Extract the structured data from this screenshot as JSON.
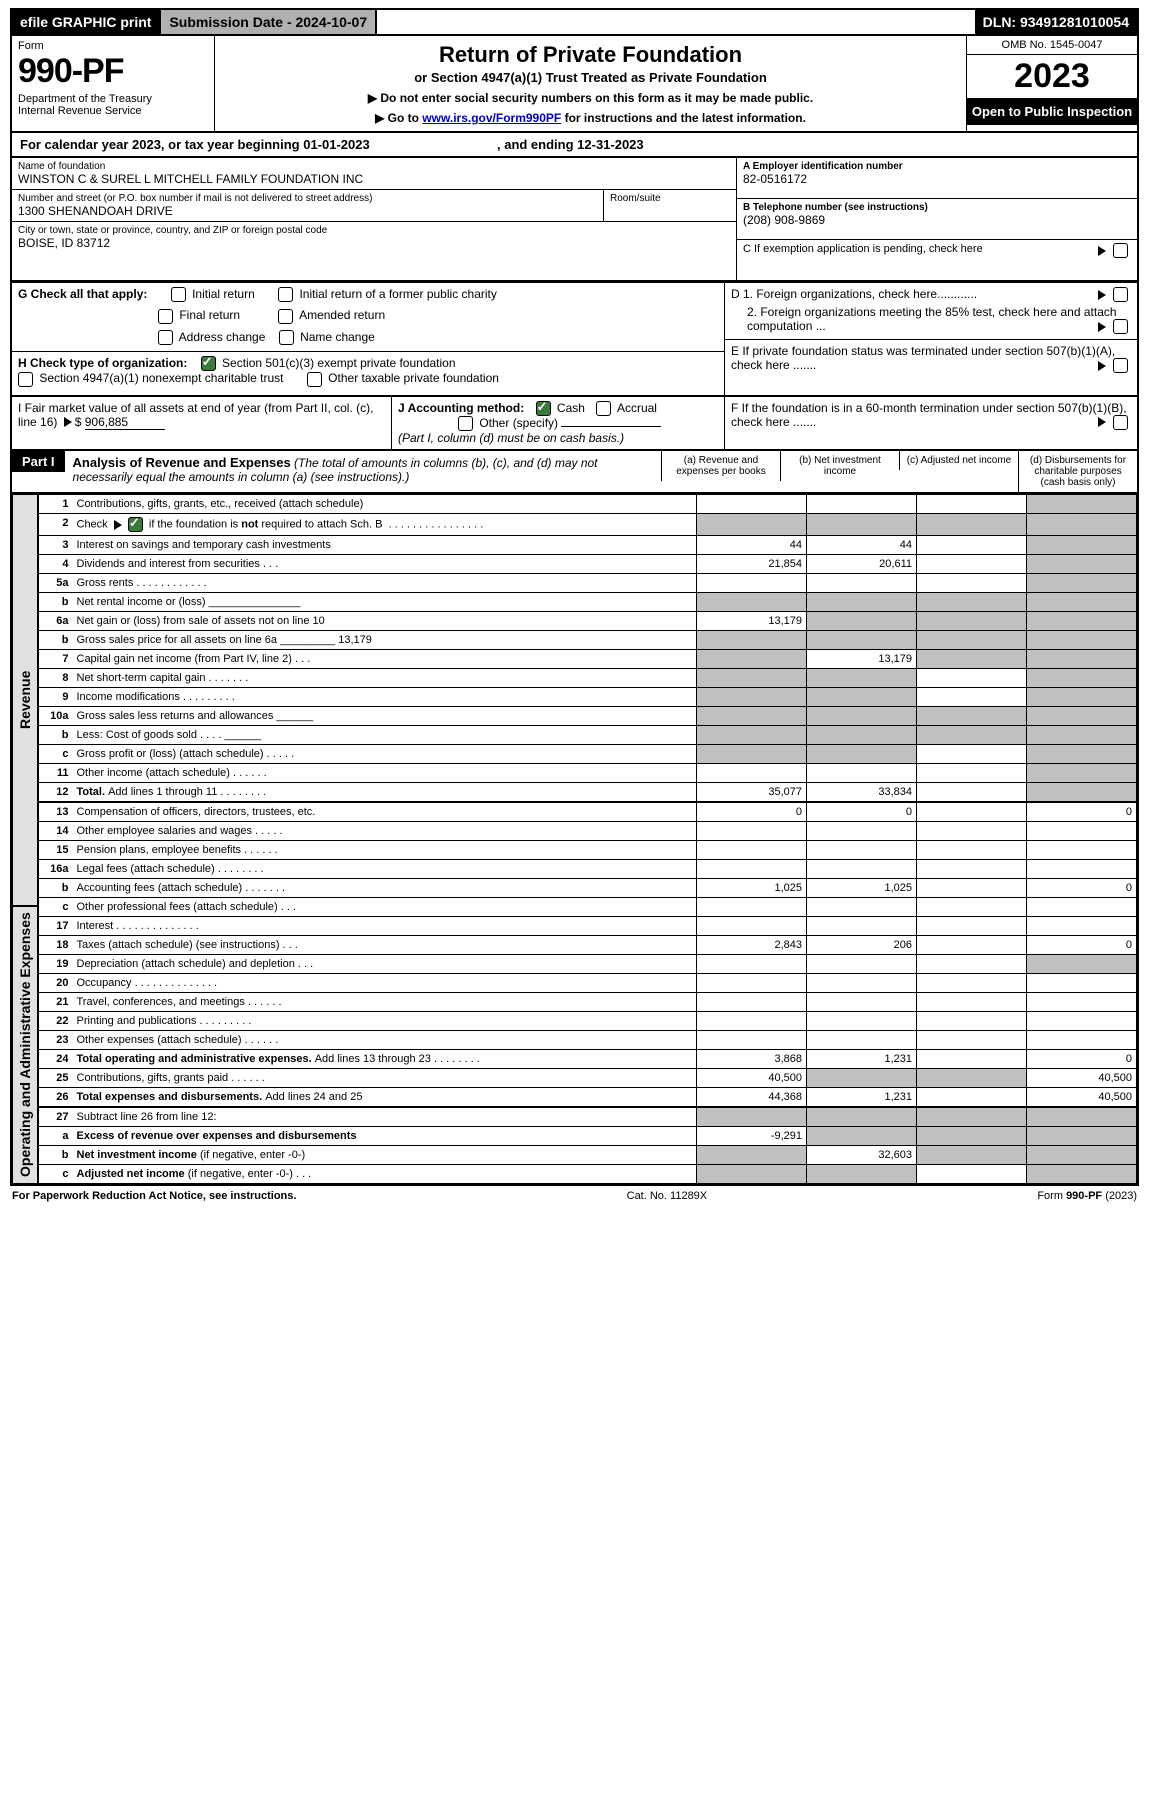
{
  "topbar": {
    "efile": "efile GRAPHIC print",
    "submission": "Submission Date - 2024-10-07",
    "dln": "DLN: 93491281010054"
  },
  "header": {
    "form_label": "Form",
    "form_no": "990-PF",
    "dept": "Department of the Treasury\nInternal Revenue Service",
    "title": "Return of Private Foundation",
    "subtitle": "or Section 4947(a)(1) Trust Treated as Private Foundation",
    "instr1": "▶ Do not enter social security numbers on this form as it may be made public.",
    "instr2_pre": "▶ Go to ",
    "instr2_link": "www.irs.gov/Form990PF",
    "instr2_post": " for instructions and the latest information.",
    "omb": "OMB No. 1545-0047",
    "year": "2023",
    "open": "Open to Public Inspection"
  },
  "calyear": {
    "pre": "For calendar year 2023, or tax year beginning 01-01-2023",
    "mid": ", and ending 12-31-2023"
  },
  "id": {
    "name_lbl": "Name of foundation",
    "name": "WINSTON C & SUREL L MITCHELL FAMILY FOUNDATION INC",
    "addr_lbl": "Number and street (or P.O. box number if mail is not delivered to street address)",
    "addr": "1300 SHENANDOAH DRIVE",
    "room_lbl": "Room/suite",
    "city_lbl": "City or town, state or province, country, and ZIP or foreign postal code",
    "city": "BOISE, ID  83712",
    "ein_lbl": "A Employer identification number",
    "ein": "82-0516172",
    "tel_lbl": "B Telephone number (see instructions)",
    "tel": "(208) 908-9869",
    "c_lbl": "C If exemption application is pending, check here"
  },
  "g": {
    "label": "G Check all that apply:",
    "opts": [
      "Initial return",
      "Initial return of a former public charity",
      "Final return",
      "Amended return",
      "Address change",
      "Name change"
    ]
  },
  "h": {
    "label": "H Check type of organization:",
    "o1": "Section 501(c)(3) exempt private foundation",
    "o2": "Section 4947(a)(1) nonexempt charitable trust",
    "o3": "Other taxable private foundation"
  },
  "d": {
    "d1": "D 1. Foreign organizations, check here............",
    "d2": "2. Foreign organizations meeting the 85% test, check here and attach computation ..."
  },
  "e": "E  If private foundation status was terminated under section 507(b)(1)(A), check here .......",
  "f": "F  If the foundation is in a 60-month termination under section 507(b)(1)(B), check here .......",
  "i": {
    "label": "I Fair market value of all assets at end of year (from Part II, col. (c), line 16)",
    "val": "906,885"
  },
  "j": {
    "label": "J Accounting method:",
    "cash": "Cash",
    "accrual": "Accrual",
    "other": "Other (specify)",
    "note": "(Part I, column (d) must be on cash basis.)"
  },
  "part1": {
    "label": "Part I",
    "title": "Analysis of Revenue and Expenses",
    "title_note": " (The total of amounts in columns (b), (c), and (d) may not necessarily equal the amounts in column (a) (see instructions).)",
    "cols": {
      "a": "(a) Revenue and expenses per books",
      "b": "(b) Net investment income",
      "c": "(c) Adjusted net income",
      "d": "(d) Disbursements for charitable purposes (cash basis only)"
    }
  },
  "sidebars": {
    "rev": "Revenue",
    "exp": "Operating and Administrative Expenses"
  },
  "lines": [
    {
      "no": "1",
      "desc": "Contributions, gifts, grants, etc., received (attach schedule)",
      "a": "",
      "b": "",
      "c_shade": false,
      "d_shade": true
    },
    {
      "no": "2",
      "desc": "Check ▶ [✓] if the foundation is not required to attach Sch. B  . . . . . . . . . . . . . . . . .",
      "d_shade": true,
      "c_shade": true,
      "a_shade": true,
      "b_shade": true
    },
    {
      "no": "3",
      "desc": "Interest on savings and temporary cash investments",
      "a": "44",
      "b": "44",
      "d_shade": true
    },
    {
      "no": "4",
      "desc": "Dividends and interest from securities   .  .  .",
      "a": "21,854",
      "b": "20,611",
      "d_shade": true
    },
    {
      "no": "5a",
      "desc": "Gross rents    .  .  .  .  .  .  .  .  .  .  .  .",
      "d_shade": true
    },
    {
      "no": "b",
      "desc": "Net rental income or (loss) _______________",
      "a_shade": true,
      "b_shade": true,
      "c_shade": true,
      "d_shade": true
    },
    {
      "no": "6a",
      "desc": "Net gain or (loss) from sale of assets not on line 10",
      "a": "13,179",
      "b_shade": true,
      "c_shade": true,
      "d_shade": true
    },
    {
      "no": "b",
      "desc": "Gross sales price for all assets on line 6a _________ 13,179",
      "a_shade": true,
      "b_shade": true,
      "c_shade": true,
      "d_shade": true
    },
    {
      "no": "7",
      "desc": "Capital gain net income (from Part IV, line 2)   .  .  .",
      "a_shade": true,
      "b": "13,179",
      "c_shade": true,
      "d_shade": true
    },
    {
      "no": "8",
      "desc": "Net short-term capital gain  .  .  .  .  .  .  .",
      "a_shade": true,
      "b_shade": true,
      "d_shade": true
    },
    {
      "no": "9",
      "desc": "Income modifications .  .  .  .  .  .  .  .  .",
      "a_shade": true,
      "b_shade": true,
      "d_shade": true
    },
    {
      "no": "10a",
      "desc": "Gross sales less returns and allowances ______",
      "a_shade": true,
      "b_shade": true,
      "c_shade": true,
      "d_shade": true
    },
    {
      "no": "b",
      "desc": "Less: Cost of goods sold    .  .  .  . ______",
      "a_shade": true,
      "b_shade": true,
      "c_shade": true,
      "d_shade": true
    },
    {
      "no": "c",
      "desc": "Gross profit or (loss) (attach schedule)   .  .  .  .  .",
      "a_shade": true,
      "b_shade": true,
      "d_shade": true
    },
    {
      "no": "11",
      "desc": "Other income (attach schedule)   .  .  .  .  .  .",
      "d_shade": true
    },
    {
      "no": "12",
      "desc_bold": "Total. ",
      "desc": "Add lines 1 through 11  .  .  .  .  .  .  .  .",
      "a": "35,077",
      "b": "33,834",
      "d_shade": true
    },
    {
      "no": "13",
      "desc": "Compensation of officers, directors, trustees, etc.",
      "a": "0",
      "b": "0",
      "d": "0"
    },
    {
      "no": "14",
      "desc": "Other employee salaries and wages   .  .  .  .  ."
    },
    {
      "no": "15",
      "desc": "Pension plans, employee benefits  .  .  .  .  .  ."
    },
    {
      "no": "16a",
      "desc": "Legal fees (attach schedule) .  .  .  .  .  .  .  ."
    },
    {
      "no": "b",
      "desc": "Accounting fees (attach schedule) .  .  .  .  .  .  .",
      "a": "1,025",
      "b": "1,025",
      "d": "0"
    },
    {
      "no": "c",
      "desc": "Other professional fees (attach schedule)   .  .  ."
    },
    {
      "no": "17",
      "desc": "Interest  .  .  .  .  .  .  .  .  .  .  .  .  .  ."
    },
    {
      "no": "18",
      "desc": "Taxes (attach schedule) (see instructions)   .  .  .",
      "a": "2,843",
      "b": "206",
      "d": "0"
    },
    {
      "no": "19",
      "desc": "Depreciation (attach schedule) and depletion   .  .  .",
      "d_shade": true
    },
    {
      "no": "20",
      "desc": "Occupancy .  .  .  .  .  .  .  .  .  .  .  .  .  ."
    },
    {
      "no": "21",
      "desc": "Travel, conferences, and meetings .  .  .  .  .  ."
    },
    {
      "no": "22",
      "desc": "Printing and publications .  .  .  .  .  .  .  .  ."
    },
    {
      "no": "23",
      "desc": "Other expenses (attach schedule) .  .  .  .  .  ."
    },
    {
      "no": "24",
      "desc_bold": "Total operating and administrative expenses. ",
      "desc": "Add lines 13 through 23  .  .  .  .  .  .  .  .",
      "a": "3,868",
      "b": "1,231",
      "d": "0"
    },
    {
      "no": "25",
      "desc": "Contributions, gifts, grants paid   .  .  .  .  .  .",
      "a": "40,500",
      "b_shade": true,
      "c_shade": true,
      "d": "40,500"
    },
    {
      "no": "26",
      "desc_bold": "Total expenses and disbursements. ",
      "desc": "Add lines 24 and 25",
      "a": "44,368",
      "b": "1,231",
      "d": "40,500"
    },
    {
      "no": "27",
      "desc": "Subtract line 26 from line 12:",
      "a_shade": true,
      "b_shade": true,
      "c_shade": true,
      "d_shade": true
    },
    {
      "no": "a",
      "desc_bold": "Excess of revenue over expenses and disbursements",
      "a": "-9,291",
      "b_shade": true,
      "c_shade": true,
      "d_shade": true
    },
    {
      "no": "b",
      "desc_bold": "Net investment income ",
      "desc": "(if negative, enter -0-)",
      "a_shade": true,
      "b": "32,603",
      "c_shade": true,
      "d_shade": true
    },
    {
      "no": "c",
      "desc_bold": "Adjusted net income ",
      "desc": "(if negative, enter -0-)  .  .  .",
      "a_shade": true,
      "b_shade": true,
      "d_shade": true
    }
  ],
  "footer": {
    "left": "For Paperwork Reduction Act Notice, see instructions.",
    "mid": "Cat. No. 11289X",
    "right": "Form 990-PF (2023)"
  }
}
